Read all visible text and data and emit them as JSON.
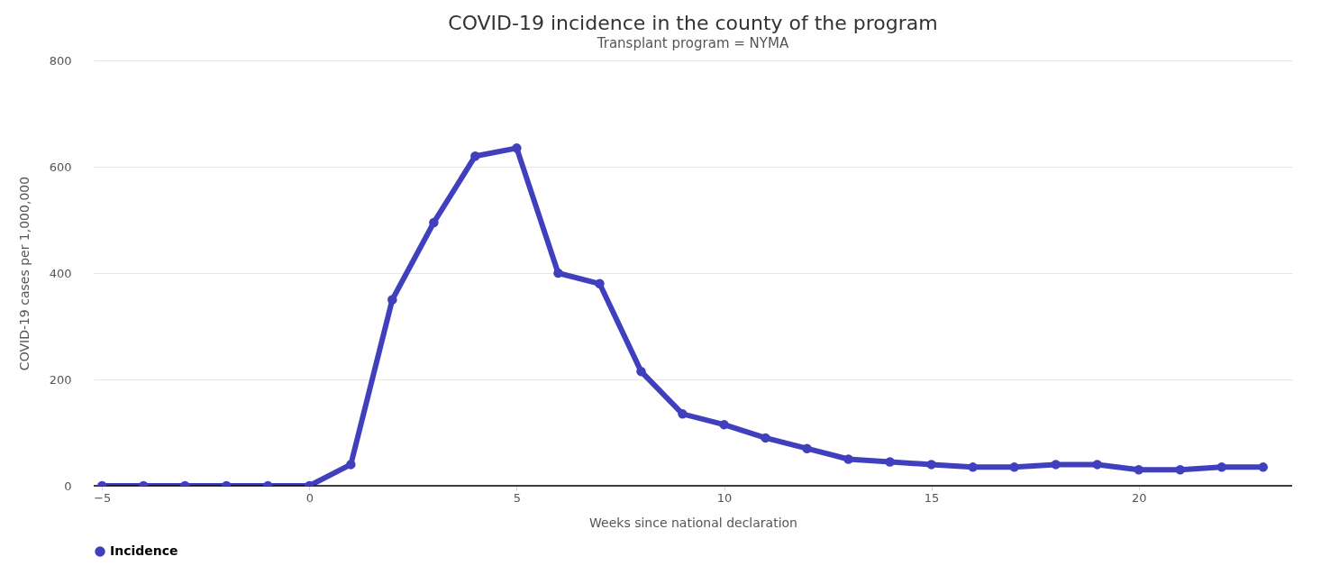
{
  "chart_data": {
    "type": "line",
    "title": "COVID-19 incidence in the county of the program",
    "subtitle": "Transplant program = NYMA",
    "xlabel": "Weeks since national declaration",
    "ylabel": "COVID-19 cases per 1,000,000",
    "x": [
      -5,
      -4,
      -3,
      -2,
      -1,
      0,
      1,
      2,
      3,
      4,
      5,
      6,
      7,
      8,
      9,
      10,
      11,
      12,
      13,
      14,
      15,
      16,
      17,
      18,
      19,
      20,
      21,
      22,
      23
    ],
    "series": [
      {
        "name": "Incidence",
        "color": "#4040bf",
        "values": [
          0,
          0,
          0,
          0,
          0,
          0,
          40,
          350,
          495,
          620,
          635,
          400,
          380,
          215,
          135,
          115,
          90,
          70,
          50,
          45,
          40,
          35,
          35,
          40,
          40,
          30,
          30,
          35,
          35
        ]
      }
    ],
    "xlim": [
      -5.2,
      23.7
    ],
    "xticks": [
      -5,
      0,
      5,
      10,
      15,
      20
    ],
    "ylim": [
      0,
      800
    ],
    "yticks": [
      0,
      200,
      400,
      600,
      800
    ],
    "grid": "y",
    "legend": "bottom",
    "marker": "circle",
    "line_style": "solid"
  }
}
